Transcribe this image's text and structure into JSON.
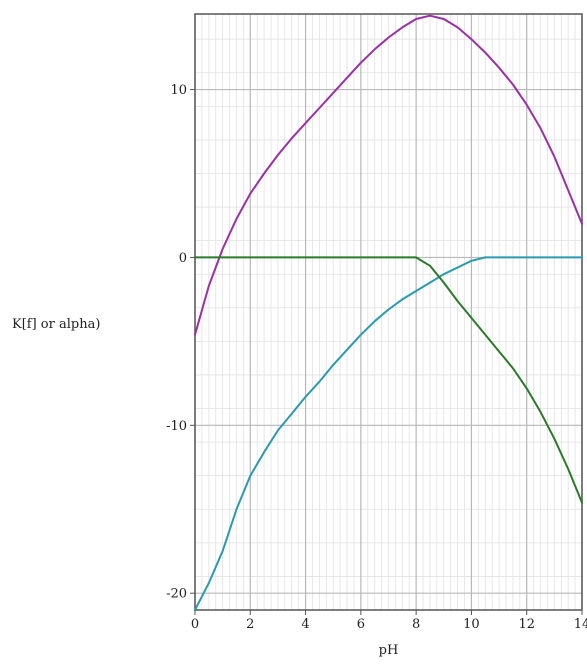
{
  "chart_data": {
    "type": "line",
    "title": "",
    "xlabel": "pH",
    "ylabel": "K[f] or alpha)",
    "xlim": [
      0,
      14
    ],
    "ylim": [
      -21,
      14.5
    ],
    "x_ticks": [
      0,
      2,
      4,
      6,
      8,
      10,
      12,
      14
    ],
    "x_tick_labels": [
      "0",
      "2",
      "4",
      "6",
      "8",
      "10",
      "12",
      "14"
    ],
    "y_ticks": [
      -20,
      -10,
      0,
      10
    ],
    "y_tick_labels": [
      "-20",
      "-10",
      "0",
      "10"
    ],
    "grid": true,
    "legend": "none",
    "series": [
      {
        "color": "#9b2fa8",
        "x": [
          0,
          0.5,
          1,
          1.5,
          2,
          2.5,
          3,
          3.5,
          4,
          4.5,
          5,
          5.5,
          6,
          6.5,
          7,
          7.5,
          8,
          8.5,
          9,
          9.5,
          10,
          10.5,
          11,
          11.5,
          12,
          12.5,
          13,
          13.5,
          14
        ],
        "y": [
          -4.6,
          -1.7,
          0.5,
          2.3,
          3.8,
          5.0,
          6.1,
          7.1,
          8.0,
          8.9,
          9.8,
          10.7,
          11.6,
          12.4,
          13.1,
          13.7,
          14.2,
          14.4,
          14.2,
          13.7,
          13.0,
          12.2,
          11.3,
          10.3,
          9.1,
          7.7,
          6.0,
          4.0,
          2.0
        ]
      },
      {
        "color": "#2a9ab0",
        "x": [
          0,
          0.5,
          1,
          1.5,
          2,
          2.5,
          3,
          3.5,
          4,
          4.5,
          5,
          5.5,
          6,
          6.5,
          7,
          7.5,
          8,
          8.5,
          9,
          9.5,
          10,
          10.5,
          11,
          11.5,
          12,
          12.5,
          13,
          13.5,
          14
        ],
        "y": [
          -21.0,
          -19.4,
          -17.5,
          -15.0,
          -13.0,
          -11.6,
          -10.3,
          -9.3,
          -8.3,
          -7.4,
          -6.4,
          -5.5,
          -4.6,
          -3.8,
          -3.1,
          -2.5,
          -2.0,
          -1.5,
          -1.0,
          -0.6,
          -0.2,
          0.0,
          0.0,
          0.0,
          0.0,
          0.0,
          0.0,
          0.0,
          0.0
        ]
      },
      {
        "color": "#2a7a2a",
        "x": [
          0,
          0.5,
          1,
          1.5,
          2,
          2.5,
          3,
          3.5,
          4,
          4.5,
          5,
          5.5,
          6,
          6.5,
          7,
          7.5,
          8,
          8.5,
          9,
          9.5,
          10,
          10.5,
          11,
          11.5,
          12,
          12.5,
          13,
          13.5,
          14
        ],
        "y": [
          0,
          0,
          0,
          0,
          0,
          0,
          0,
          0,
          0,
          0,
          0,
          0,
          0,
          0,
          0,
          0,
          0,
          -0.5,
          -1.5,
          -2.6,
          -3.6,
          -4.6,
          -5.6,
          -6.6,
          -7.8,
          -9.2,
          -10.8,
          -12.6,
          -14.6
        ]
      }
    ]
  }
}
